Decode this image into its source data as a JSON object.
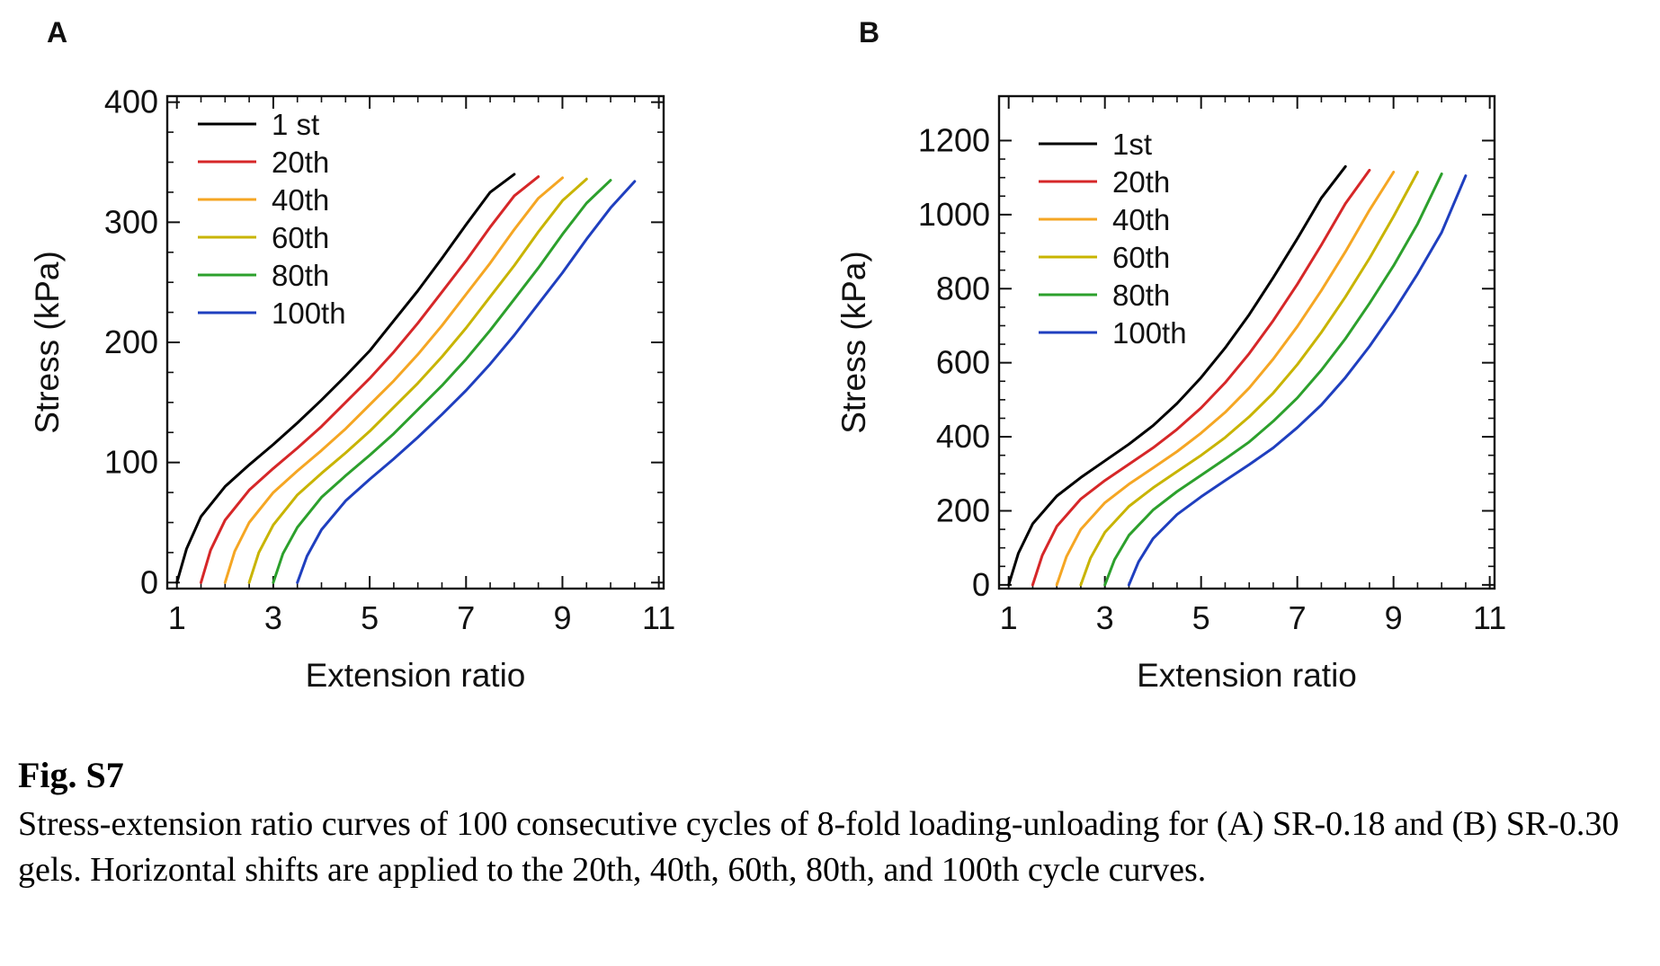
{
  "figure": {
    "label": "Fig. S7",
    "caption": "Stress-extension ratio curves of 100 consecutive cycles of 8-fold loading-unloading for (A) SR-0.18 and (B) SR-0.30 gels. Horizontal shifts are applied to the 20th, 40th, 60th, 80th, and 100th cycle curves."
  },
  "chart_data": [
    {
      "panel": "A",
      "type": "line",
      "xlabel": "Extension ratio",
      "ylabel": "Stress (kPa)",
      "xlim": [
        0.8,
        11.1
      ],
      "ylim": [
        -5,
        405
      ],
      "xticks": [
        1,
        3,
        5,
        7,
        9,
        11
      ],
      "yticks": [
        0,
        100,
        200,
        300,
        400
      ],
      "grid": false,
      "legend_position": "top-left",
      "series": [
        {
          "name": "1 st",
          "color": "#000000",
          "x": [
            1.0,
            1.2,
            1.5,
            2.0,
            2.5,
            3.0,
            3.5,
            4.0,
            4.5,
            5.0,
            5.5,
            6.0,
            6.5,
            7.0,
            7.5,
            8.0
          ],
          "y": [
            0,
            28,
            55,
            80,
            98,
            115,
            133,
            152,
            172,
            193,
            218,
            243,
            270,
            298,
            325,
            340
          ]
        },
        {
          "name": "20th",
          "color": "#d62728",
          "x": [
            1.5,
            1.7,
            2.0,
            2.5,
            3.0,
            3.5,
            4.0,
            4.5,
            5.0,
            5.5,
            6.0,
            6.5,
            7.0,
            7.5,
            8.0,
            8.5
          ],
          "y": [
            0,
            27,
            52,
            77,
            95,
            112,
            130,
            150,
            170,
            192,
            216,
            242,
            268,
            296,
            322,
            338
          ]
        },
        {
          "name": "40th",
          "color": "#f5a623",
          "x": [
            2.0,
            2.2,
            2.5,
            3.0,
            3.5,
            4.0,
            4.5,
            5.0,
            5.5,
            6.0,
            6.5,
            7.0,
            7.5,
            8.0,
            8.5,
            9.0
          ],
          "y": [
            0,
            26,
            50,
            75,
            93,
            110,
            128,
            148,
            168,
            190,
            214,
            240,
            266,
            294,
            320,
            337
          ]
        },
        {
          "name": "60th",
          "color": "#c8b400",
          "x": [
            2.5,
            2.7,
            3.0,
            3.5,
            4.0,
            4.5,
            5.0,
            5.5,
            6.0,
            6.5,
            7.0,
            7.5,
            8.0,
            8.5,
            9.0,
            9.5
          ],
          "y": [
            0,
            25,
            48,
            73,
            91,
            108,
            126,
            146,
            166,
            188,
            212,
            238,
            264,
            292,
            318,
            336
          ]
        },
        {
          "name": "80th",
          "color": "#2ca02c",
          "x": [
            3.0,
            3.2,
            3.5,
            4.0,
            4.5,
            5.0,
            5.5,
            6.0,
            6.5,
            7.0,
            7.5,
            8.0,
            8.5,
            9.0,
            9.5,
            10.0
          ],
          "y": [
            0,
            24,
            46,
            71,
            89,
            106,
            124,
            144,
            164,
            186,
            210,
            236,
            262,
            290,
            316,
            335
          ]
        },
        {
          "name": "100th",
          "color": "#1f3fbf",
          "x": [
            3.5,
            3.7,
            4.0,
            4.5,
            5.0,
            5.5,
            6.0,
            6.5,
            7.0,
            7.5,
            8.0,
            8.5,
            9.0,
            9.5,
            10.0,
            10.5
          ],
          "y": [
            0,
            22,
            44,
            68,
            86,
            103,
            121,
            140,
            160,
            182,
            206,
            232,
            258,
            286,
            312,
            334
          ]
        }
      ]
    },
    {
      "panel": "B",
      "type": "line",
      "xlabel": "Extension ratio",
      "ylabel": "Stress (kPa)",
      "xlim": [
        0.8,
        11.1
      ],
      "ylim": [
        -10,
        1320
      ],
      "xticks": [
        1,
        3,
        5,
        7,
        9,
        11
      ],
      "yticks": [
        0,
        200,
        400,
        600,
        800,
        1000,
        1200
      ],
      "grid": false,
      "legend_position": "top-left",
      "series": [
        {
          "name": "1st",
          "color": "#000000",
          "x": [
            1.0,
            1.2,
            1.5,
            2.0,
            2.5,
            3.0,
            3.5,
            4.0,
            4.5,
            5.0,
            5.5,
            6.0,
            6.5,
            7.0,
            7.5,
            8.0
          ],
          "y": [
            0,
            85,
            165,
            240,
            290,
            335,
            380,
            430,
            490,
            560,
            640,
            730,
            830,
            935,
            1045,
            1130
          ]
        },
        {
          "name": "20th",
          "color": "#d62728",
          "x": [
            1.5,
            1.7,
            2.0,
            2.5,
            3.0,
            3.5,
            4.0,
            4.5,
            5.0,
            5.5,
            6.0,
            6.5,
            7.0,
            7.5,
            8.0,
            8.5
          ],
          "y": [
            0,
            80,
            158,
            232,
            282,
            326,
            370,
            420,
            478,
            546,
            625,
            714,
            812,
            918,
            1030,
            1120
          ]
        },
        {
          "name": "40th",
          "color": "#f5a623",
          "x": [
            2.0,
            2.2,
            2.5,
            3.0,
            3.5,
            4.0,
            4.5,
            5.0,
            5.5,
            6.0,
            6.5,
            7.0,
            7.5,
            8.0,
            8.5,
            9.0
          ],
          "y": [
            0,
            76,
            150,
            222,
            272,
            316,
            360,
            410,
            466,
            532,
            610,
            698,
            795,
            900,
            1012,
            1115
          ]
        },
        {
          "name": "60th",
          "color": "#c8b400",
          "x": [
            2.5,
            2.7,
            3.0,
            3.5,
            4.0,
            4.5,
            5.0,
            5.5,
            6.0,
            6.5,
            7.0,
            7.5,
            8.0,
            8.5,
            9.0,
            9.5
          ],
          "y": [
            0,
            72,
            142,
            212,
            262,
            306,
            350,
            398,
            454,
            518,
            595,
            682,
            778,
            882,
            995,
            1115
          ]
        },
        {
          "name": "80th",
          "color": "#2ca02c",
          "x": [
            3.0,
            3.2,
            3.5,
            4.0,
            4.5,
            5.0,
            5.5,
            6.0,
            6.5,
            7.0,
            7.5,
            8.0,
            8.5,
            9.0,
            9.5,
            10.0
          ],
          "y": [
            0,
            68,
            134,
            202,
            252,
            296,
            340,
            386,
            442,
            505,
            580,
            665,
            760,
            862,
            975,
            1110
          ]
        },
        {
          "name": "100th",
          "color": "#1f3fbf",
          "x": [
            3.5,
            3.7,
            4.0,
            4.5,
            5.0,
            5.5,
            6.0,
            6.5,
            7.0,
            7.5,
            8.0,
            8.5,
            9.0,
            9.5,
            10.0,
            10.5
          ],
          "y": [
            0,
            62,
            125,
            190,
            238,
            282,
            325,
            370,
            425,
            486,
            560,
            644,
            738,
            840,
            952,
            1105
          ]
        }
      ]
    }
  ]
}
